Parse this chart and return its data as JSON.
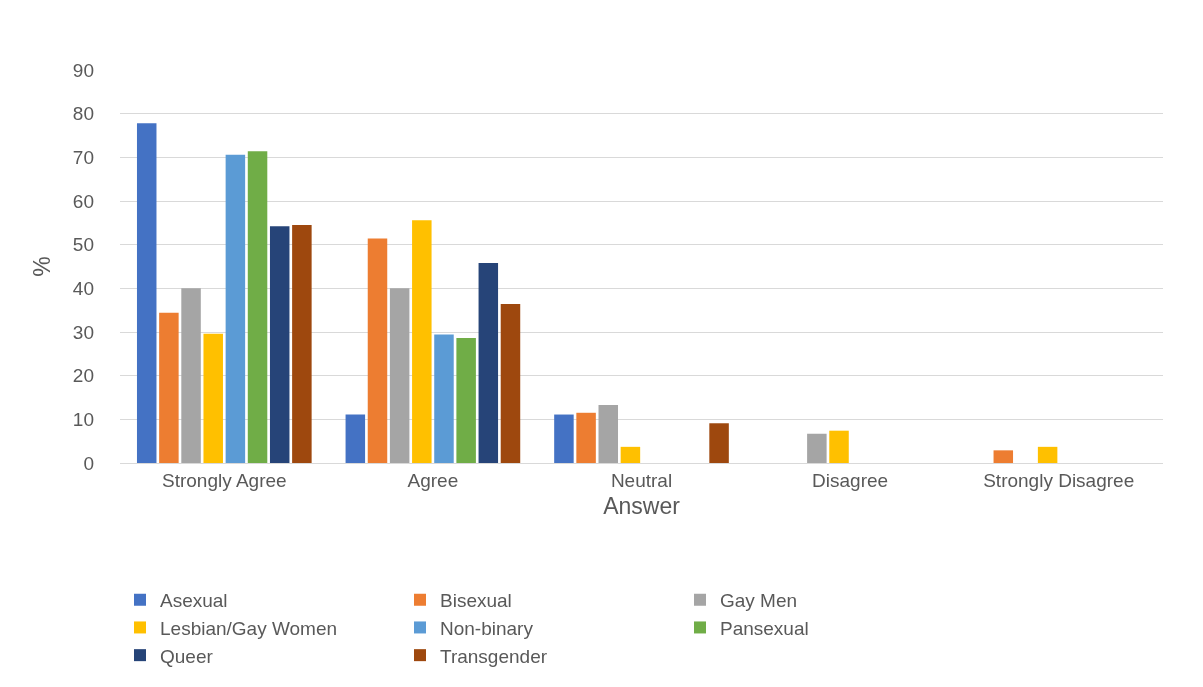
{
  "chart_data": {
    "type": "bar",
    "xlabel": "Answer",
    "ylabel": "%",
    "categories": [
      "Strongly Agree",
      "Agree",
      "Neutral",
      "Disagree",
      "Strongly Disagree"
    ],
    "ylim": [
      0,
      90
    ],
    "yticks": [
      0,
      10,
      20,
      30,
      40,
      50,
      60,
      70,
      80,
      90
    ],
    "grid": "y",
    "legend": "bottom",
    "series": [
      {
        "name": "Asexual",
        "color": "#4472c4",
        "values": [
          77.8,
          11.1,
          11.1,
          0,
          0
        ]
      },
      {
        "name": "Bisexual",
        "color": "#ed7d31",
        "values": [
          34.4,
          51.4,
          11.5,
          0,
          2.9
        ]
      },
      {
        "name": "Gay Men",
        "color": "#a5a5a5",
        "values": [
          40,
          40,
          13.3,
          6.7,
          0
        ]
      },
      {
        "name": "Lesbian/Gay Women",
        "color": "#ffc000",
        "values": [
          29.6,
          55.6,
          3.7,
          7.4,
          3.7
        ]
      },
      {
        "name": "Non-binary",
        "color": "#5b9bd5",
        "values": [
          70.6,
          29.4,
          0,
          0,
          0
        ]
      },
      {
        "name": "Pansexual",
        "color": "#70ad47",
        "values": [
          71.4,
          28.6,
          0,
          0,
          0
        ]
      },
      {
        "name": "Queer",
        "color": "#264478",
        "values": [
          54.2,
          45.8,
          0,
          0,
          0
        ]
      },
      {
        "name": "Transgender",
        "color": "#9e480e",
        "values": [
          54.5,
          36.4,
          9.1,
          0,
          0
        ]
      }
    ]
  }
}
